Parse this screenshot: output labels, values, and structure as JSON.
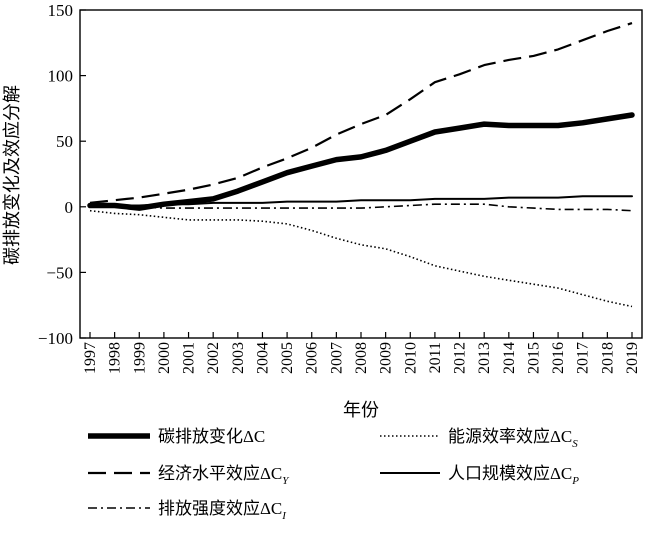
{
  "chart_data": {
    "type": "line",
    "title": "",
    "xlabel": "年份",
    "ylabel": "碳排放变化及效应分解",
    "ylim": [
      -100,
      150
    ],
    "yticks": [
      {
        "value": 150,
        "label": "150"
      },
      {
        "value": 100,
        "label": "100"
      },
      {
        "value": 50,
        "label": "50"
      },
      {
        "value": 0,
        "label": "0"
      },
      {
        "value": -50,
        "label": "−50"
      },
      {
        "value": -100,
        "label": "−100"
      }
    ],
    "categories": [
      "1997",
      "1998",
      "1999",
      "2000",
      "2001",
      "2002",
      "2003",
      "2004",
      "2005",
      "2006",
      "2007",
      "2008",
      "2009",
      "2010",
      "2011",
      "2012",
      "2013",
      "2014",
      "2015",
      "2016",
      "2017",
      "2018",
      "2019"
    ],
    "grid": false,
    "legend_position": "bottom",
    "series": [
      {
        "key": "total",
        "name_main": "碳排放变化ΔC",
        "name_sub": "",
        "style": "thick-solid",
        "values": [
          1,
          1,
          -1,
          2,
          4,
          6,
          12,
          19,
          26,
          31,
          36,
          38,
          43,
          50,
          57,
          60,
          63,
          62,
          62,
          62,
          64,
          67,
          70
        ]
      },
      {
        "key": "economic",
        "name_main": "经济水平效应ΔC",
        "name_sub": "Y",
        "style": "long-dash",
        "values": [
          3,
          5,
          7,
          10,
          13,
          17,
          22,
          30,
          37,
          45,
          55,
          63,
          70,
          82,
          95,
          101,
          108,
          112,
          115,
          120,
          127,
          134,
          140
        ]
      },
      {
        "key": "intensity",
        "name_main": "排放强度效应ΔC",
        "name_sub": "I",
        "style": "dash-dot",
        "values": [
          0,
          0,
          0,
          -1,
          -1,
          -1,
          -1,
          -1,
          -1,
          -1,
          -1,
          -1,
          0,
          1,
          2,
          2,
          2,
          0,
          -1,
          -2,
          -2,
          -2,
          -3
        ]
      },
      {
        "key": "energy",
        "name_main": "能源效率效应ΔC",
        "name_sub": "S",
        "style": "dotted",
        "values": [
          -3,
          -5,
          -6,
          -8,
          -10,
          -10,
          -10,
          -11,
          -13,
          -18,
          -24,
          -29,
          -32,
          -38,
          -45,
          -49,
          -53,
          -56,
          -59,
          -62,
          -67,
          -72,
          -76
        ]
      },
      {
        "key": "population",
        "name_main": "人口规模效应ΔC",
        "name_sub": "P",
        "style": "thin-solid",
        "values": [
          1,
          1,
          1,
          2,
          2,
          3,
          3,
          3,
          4,
          4,
          4,
          5,
          5,
          5,
          6,
          6,
          6,
          7,
          7,
          7,
          8,
          8,
          8
        ]
      }
    ]
  },
  "colors": {
    "line": "#000000",
    "background": "#ffffff"
  }
}
